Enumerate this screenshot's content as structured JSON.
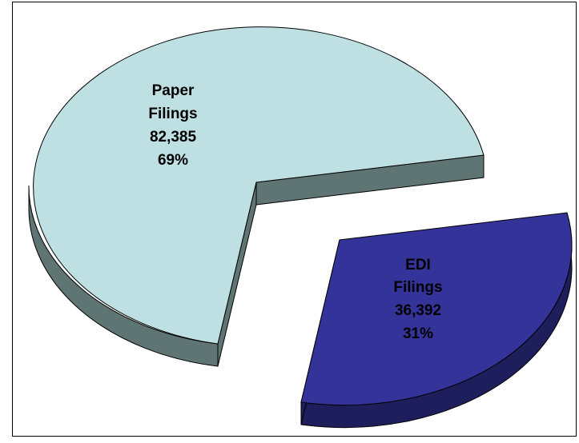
{
  "chart_data": {
    "type": "pie",
    "slices": [
      {
        "name": "Paper Filings",
        "label_lines": [
          "Paper",
          "Filings",
          "82,385",
          "69%"
        ],
        "value": 82385,
        "percent": 69,
        "color": "#bfe0e3",
        "side_color": "#5f7573",
        "exploded": false
      },
      {
        "name": "EDI Filings",
        "label_lines": [
          "EDI",
          "Filings",
          "36,392",
          "31%"
        ],
        "value": 36392,
        "percent": 31,
        "color": "#343399",
        "side_color": "#1e1e5c",
        "exploded": true
      }
    ],
    "view": "3d-tilted",
    "legend": "none"
  },
  "colors": {
    "background": "#ffffff",
    "frame": "#000000",
    "edge": "#000000"
  }
}
